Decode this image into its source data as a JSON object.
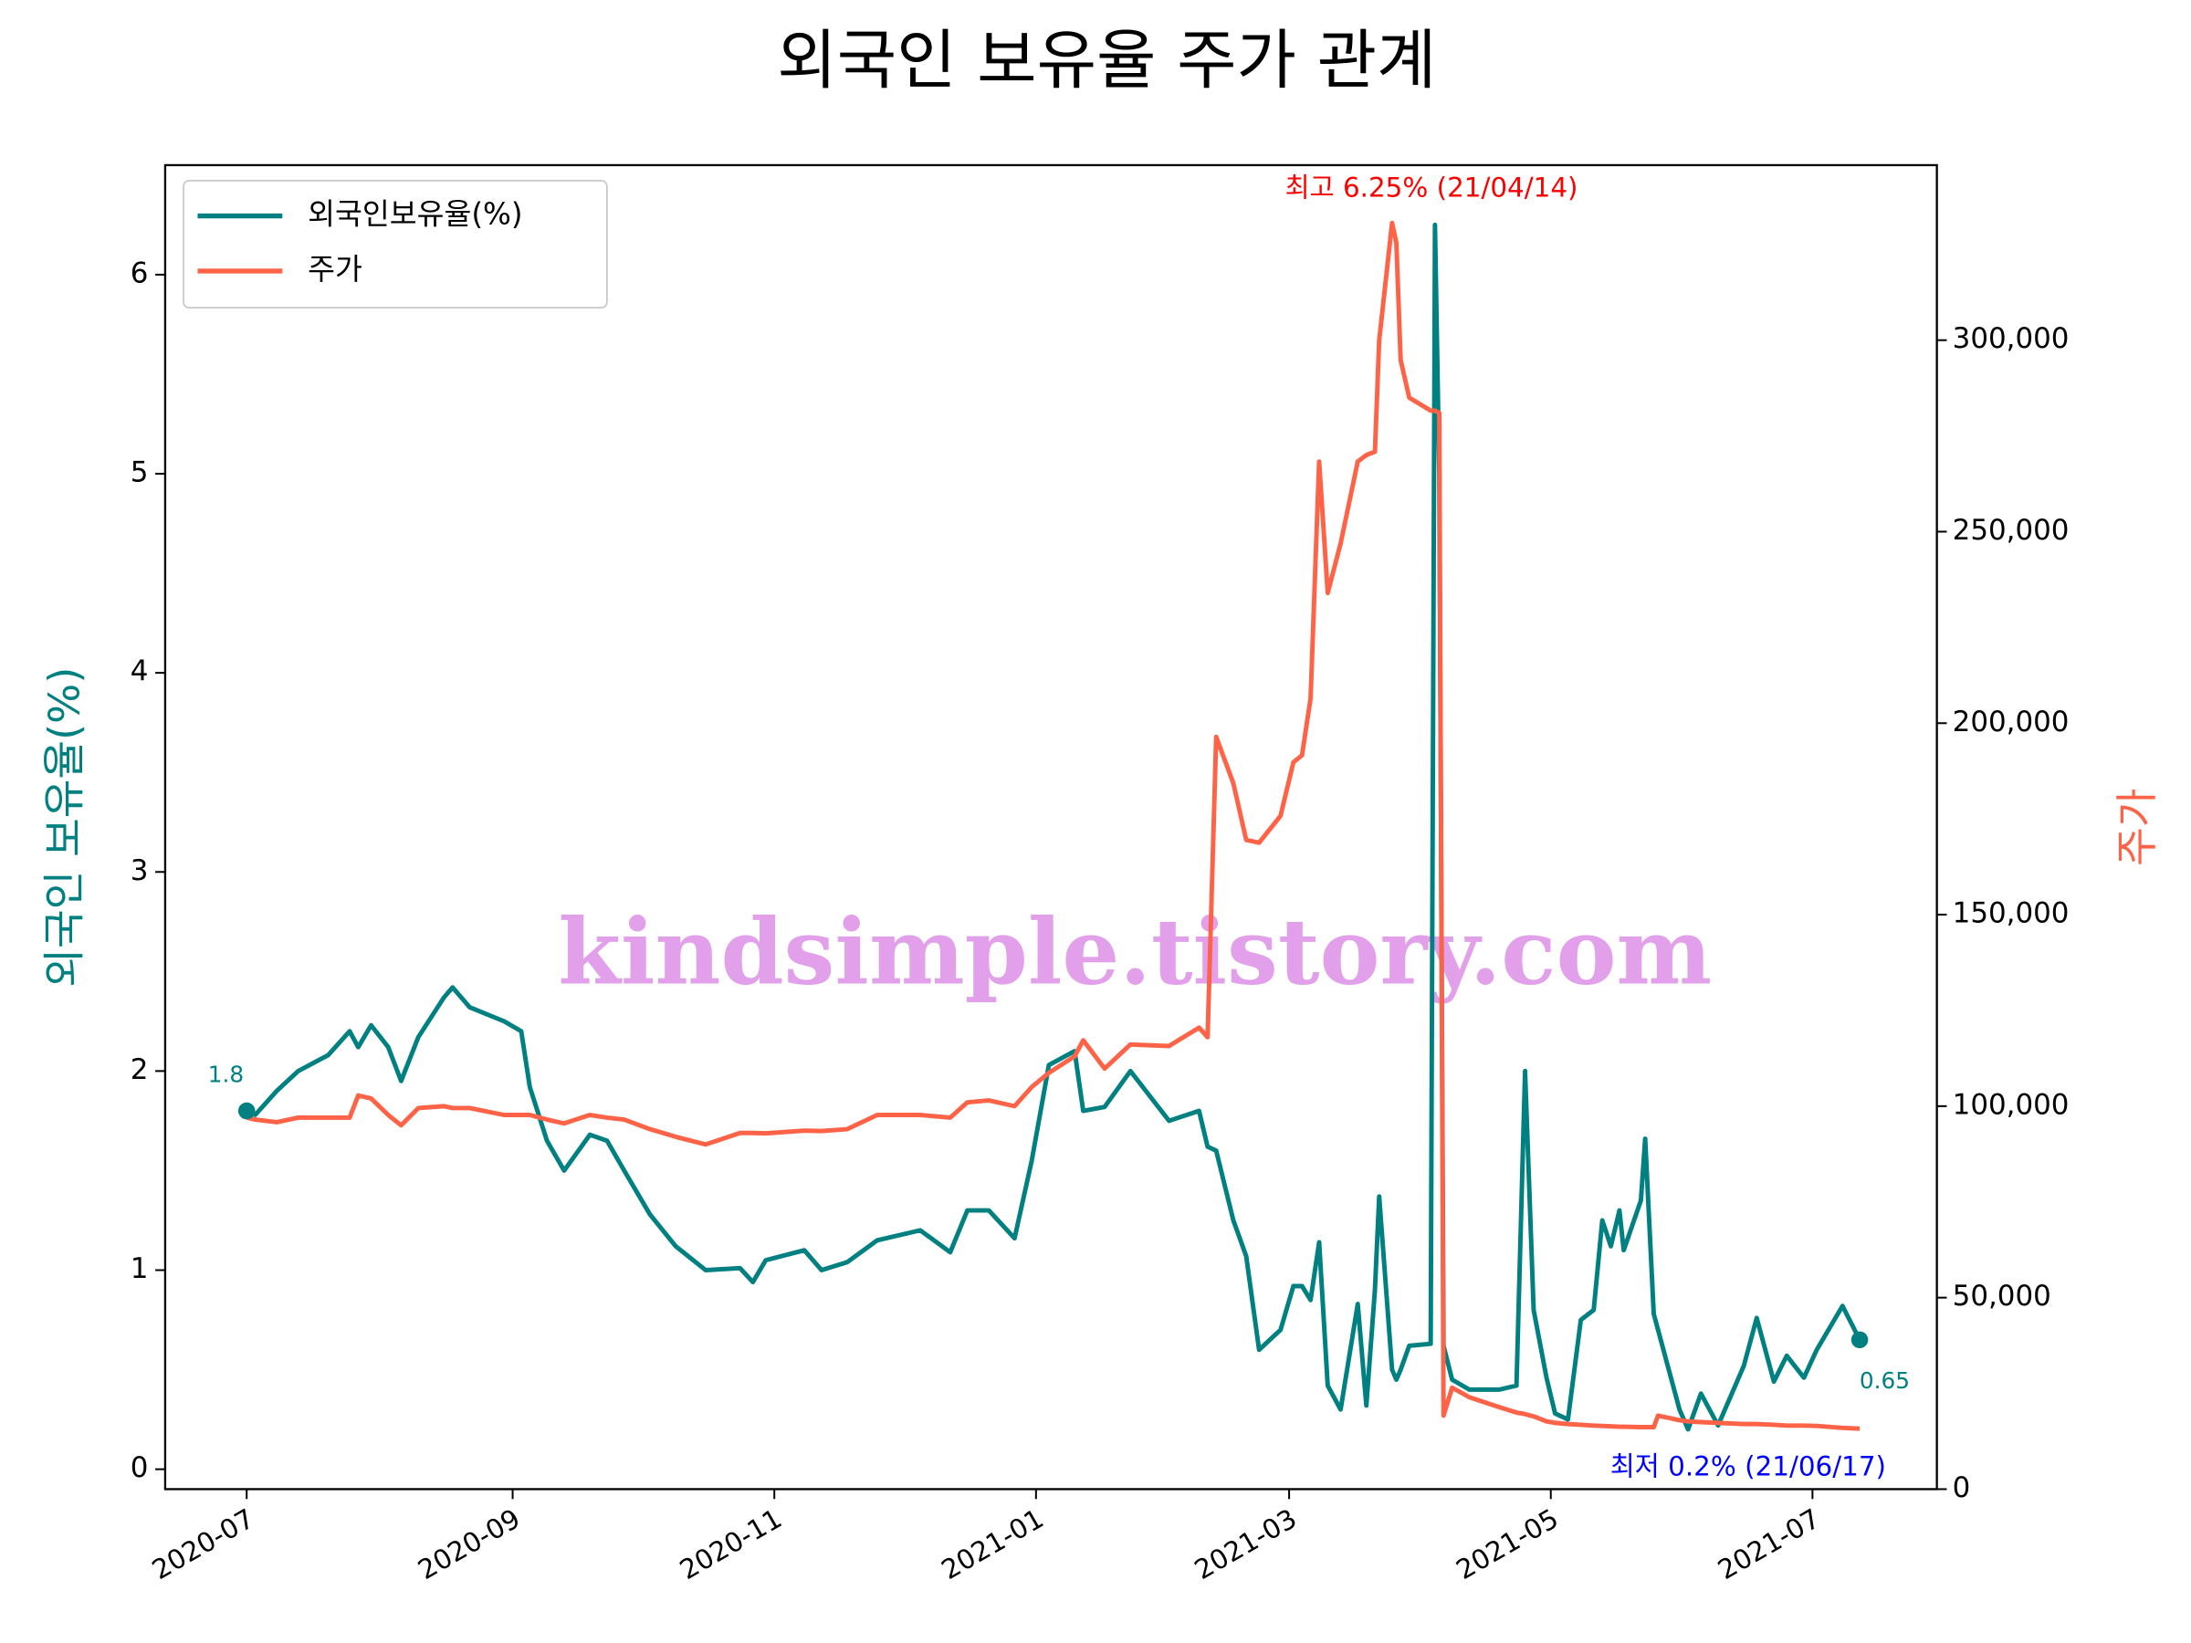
{
  "chart_data": {
    "type": "line",
    "title": "외국인 보유율 주가 관계",
    "y_label": "외국인 보유율(%)",
    "y2_label": "주가",
    "watermark": "kindsimple.tistory.com",
    "legend": "upper left",
    "x": [
      "2020-07-01",
      "2020-07-03",
      "2020-07-08",
      "2020-07-13",
      "2020-07-20",
      "2020-07-25",
      "2020-07-27",
      "2020-07-30",
      "2020-08-03",
      "2020-08-06",
      "2020-08-10",
      "2020-08-16",
      "2020-08-18",
      "2020-08-22",
      "2020-08-30",
      "2020-09-03",
      "2020-09-05",
      "2020-09-09",
      "2020-09-13",
      "2020-09-19",
      "2020-09-23",
      "2020-09-27",
      "2020-10-03",
      "2020-10-09",
      "2020-10-16",
      "2020-10-24",
      "2020-10-27",
      "2020-10-30",
      "2020-11-08",
      "2020-11-12",
      "2020-11-18",
      "2020-11-25",
      "2020-12-05",
      "2020-12-12",
      "2020-12-16",
      "2020-12-21",
      "2020-12-27",
      "2020-12-31",
      "2021-01-04",
      "2021-01-10",
      "2021-01-12",
      "2021-01-17",
      "2021-01-23",
      "2021-02-01",
      "2021-02-08",
      "2021-02-10",
      "2021-02-12",
      "2021-02-16",
      "2021-02-19",
      "2021-02-22",
      "2021-02-27",
      "2021-03-02",
      "2021-03-04",
      "2021-03-06",
      "2021-03-08",
      "2021-03-10",
      "2021-03-13",
      "2021-03-17",
      "2021-03-19",
      "2021-03-21",
      "2021-03-22",
      "2021-03-25",
      "2021-03-26",
      "2021-03-27",
      "2021-03-29",
      "2021-04-03",
      "2021-04-04",
      "2021-04-05",
      "2021-04-06",
      "2021-04-08",
      "2021-04-12",
      "2021-04-19",
      "2021-04-23",
      "2021-04-25",
      "2021-04-27",
      "2021-04-30",
      "2021-05-02",
      "2021-05-05",
      "2021-05-08",
      "2021-05-11",
      "2021-05-13",
      "2021-05-15",
      "2021-05-17",
      "2021-05-18",
      "2021-05-22",
      "2021-05-23",
      "2021-05-25",
      "2021-05-26",
      "2021-05-31",
      "2021-06-02",
      "2021-06-05",
      "2021-06-09",
      "2021-06-15",
      "2021-06-18",
      "2021-06-22",
      "2021-06-25",
      "2021-06-29",
      "2021-07-02",
      "2021-07-08",
      "2021-07-12"
    ],
    "series": [
      {
        "name": "외국인보유율(%)",
        "color": "#008080",
        "axis": "y",
        "values": [
          1.8,
          1.78,
          1.9,
          2.0,
          2.08,
          2.2,
          2.12,
          2.23,
          2.12,
          1.95,
          2.17,
          2.37,
          2.42,
          2.32,
          2.25,
          2.2,
          1.92,
          1.65,
          1.5,
          1.68,
          1.65,
          1.5,
          1.28,
          1.12,
          1.0,
          1.01,
          0.94,
          1.05,
          1.1,
          1.0,
          1.04,
          1.15,
          1.2,
          1.09,
          1.3,
          1.3,
          1.16,
          1.55,
          2.03,
          2.1,
          1.8,
          1.82,
          2.0,
          1.75,
          1.8,
          1.62,
          1.6,
          1.25,
          1.07,
          0.6,
          0.7,
          0.92,
          0.92,
          0.85,
          1.14,
          0.42,
          0.3,
          0.83,
          0.32,
          0.9,
          1.37,
          0.5,
          0.45,
          0.5,
          0.62,
          0.63,
          6.25,
          5.0,
          0.62,
          0.45,
          0.4,
          0.4,
          0.42,
          2.0,
          0.8,
          0.46,
          0.28,
          0.25,
          0.75,
          0.8,
          1.25,
          1.12,
          1.3,
          1.1,
          1.35,
          1.66,
          0.78,
          0.7,
          0.3,
          0.2,
          0.38,
          0.22,
          0.52,
          0.76,
          0.44,
          0.57,
          0.46,
          0.6,
          0.82,
          0.65
        ]
      },
      {
        "name": "주가",
        "color": "#ff6347",
        "axis": "y2",
        "values": [
          97000,
          96500,
          95800,
          97000,
          97000,
          97000,
          102800,
          102000,
          97700,
          95000,
          99500,
          100000,
          99500,
          99500,
          97700,
          97700,
          97700,
          96500,
          95500,
          97700,
          97000,
          96500,
          94000,
          92000,
          90000,
          93000,
          93000,
          92900,
          93600,
          93500,
          94000,
          97700,
          97700,
          97000,
          101000,
          101500,
          100000,
          105000,
          108700,
          113000,
          117200,
          109800,
          116100,
          115700,
          120500,
          118000,
          196400,
          184300,
          169500,
          168800,
          175800,
          189800,
          191600,
          206400,
          268300,
          234000,
          246900,
          268300,
          270000,
          270900,
          300000,
          330600,
          325400,
          294800,
          285000,
          281600,
          281600,
          281000,
          19200,
          26500,
          24000,
          21400,
          20000,
          19600,
          19000,
          17700,
          17300,
          17000,
          16800,
          16600,
          16500,
          16400,
          16300,
          16300,
          16200,
          16200,
          16200,
          19200,
          18000,
          17700,
          17500,
          17300,
          17000,
          17000,
          16800,
          16600,
          16600,
          16500,
          16000,
          15800
        ]
      }
    ],
    "annotations": [
      {
        "text": "최고 6.25% (21/04/14)",
        "color": "red"
      },
      {
        "text": "최저 0.2% (21/06/17)",
        "color": "blue"
      },
      {
        "text": "1.8",
        "color": "#008080"
      },
      {
        "text": "0.65",
        "color": "#008080"
      }
    ],
    "xlim": [
      "2020-06-12",
      "2021-07-30"
    ],
    "xticks": [
      {
        "value": "2020-07-01",
        "label": "2020-07"
      },
      {
        "value": "2020-09-01",
        "label": "2020-09"
      },
      {
        "value": "2020-11-01",
        "label": "2020-11"
      },
      {
        "value": "2021-01-01",
        "label": "2021-01"
      },
      {
        "value": "2021-03-01",
        "label": "2021-03"
      },
      {
        "value": "2021-05-01",
        "label": "2021-05"
      },
      {
        "value": "2021-07-01",
        "label": "2021-07"
      }
    ],
    "ylim": [
      -0.1,
      6.55
    ],
    "yticks": [
      0,
      1,
      2,
      3,
      4,
      5,
      6
    ],
    "y2lim": [
      0,
      345700
    ],
    "y2ticks": [
      0,
      {
        "value": 50000,
        "label": "50,000"
      },
      {
        "value": 100000,
        "label": "100,000"
      },
      {
        "value": 150000,
        "label": "150,000"
      },
      {
        "value": 200000,
        "label": "200,000"
      },
      {
        "value": 250000,
        "label": "250,000"
      },
      {
        "value": 300000,
        "label": "300,000"
      }
    ]
  }
}
